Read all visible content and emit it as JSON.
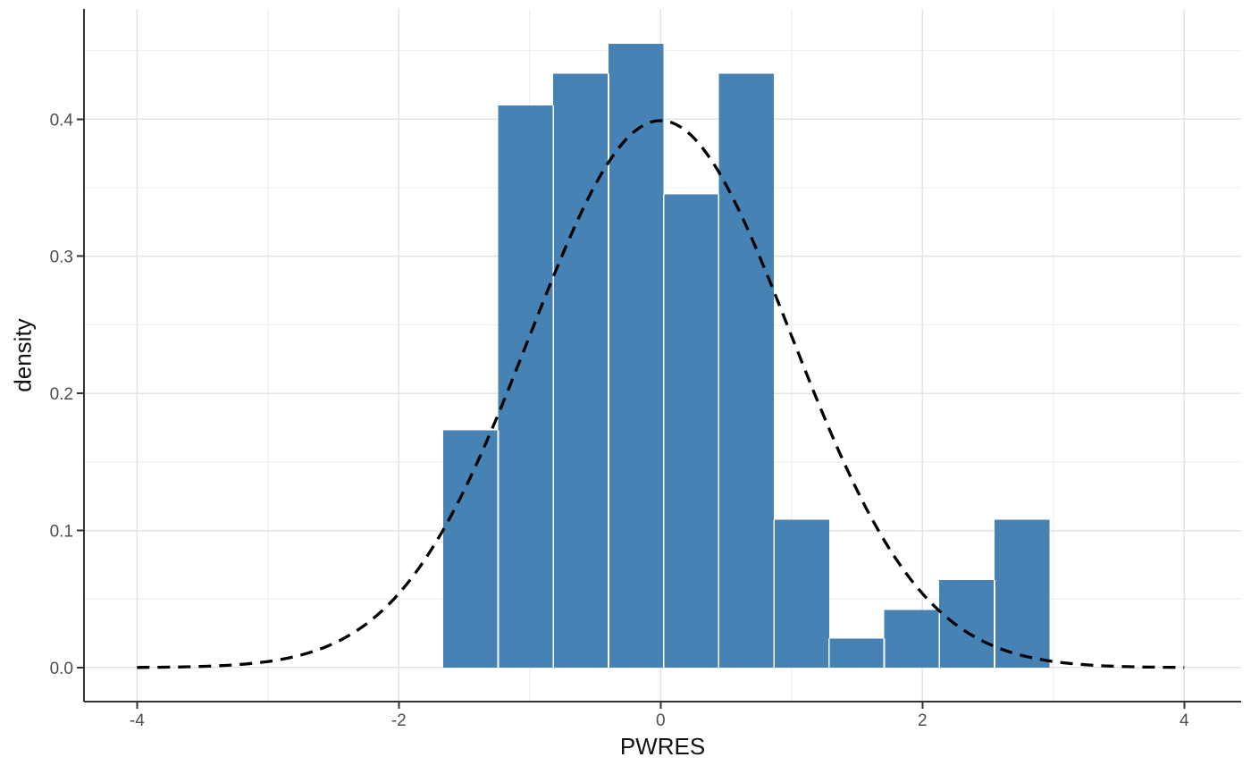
{
  "figure": {
    "title": "",
    "xlabel": "PWRES",
    "ylabel": "density"
  },
  "colors": {
    "bar_fill": "#4682B4",
    "bar_separator": "#FFFFFF",
    "curve": "#000000",
    "grid_major": "#E4E4E4",
    "grid_minor": "#F1F1F1",
    "axis_line": "#333333",
    "tick_mark": "#333333",
    "tick_label": "#4D4D4D",
    "axis_title": "#111111",
    "panel_background": "#FFFFFF"
  },
  "chart_data": {
    "type": "bar",
    "subtype": "histogram-with-density-curve",
    "title": "",
    "xlabel": "PWRES",
    "ylabel": "density",
    "xlim": [
      -4.405,
      4.435
    ],
    "ylim": [
      -0.0248,
      0.4804
    ],
    "grid": "on",
    "legend": "none",
    "x_ticks": {
      "values": [
        -4,
        -2,
        0,
        2,
        4
      ],
      "labels": [
        "-4",
        "-2",
        "0",
        "2",
        "4"
      ]
    },
    "y_ticks": {
      "values": [
        0.0,
        0.1,
        0.2,
        0.3,
        0.4
      ],
      "labels": [
        "0.0",
        "0.1",
        "0.2",
        "0.3",
        "0.4"
      ]
    },
    "x_minor_ticks": [
      -3,
      -1,
      1,
      3
    ],
    "y_minor_ticks": [
      0.05,
      0.15,
      0.25,
      0.35,
      0.45
    ],
    "histogram": {
      "bin_edges": [
        -1.662,
        -1.241,
        -0.82,
        -0.398,
        0.023,
        0.444,
        0.866,
        1.287,
        1.708,
        2.129,
        2.551,
        2.972
      ],
      "density": [
        0.173,
        0.41,
        0.433,
        0.455,
        0.345,
        0.433,
        0.108,
        0.021,
        0.042,
        0.064,
        0.108
      ]
    },
    "curve": {
      "distribution": "normal",
      "mean": 0,
      "sd": 1,
      "x_min": -4,
      "x_max": 4,
      "peak_density": 0.3989,
      "line_style": "dashed"
    }
  }
}
